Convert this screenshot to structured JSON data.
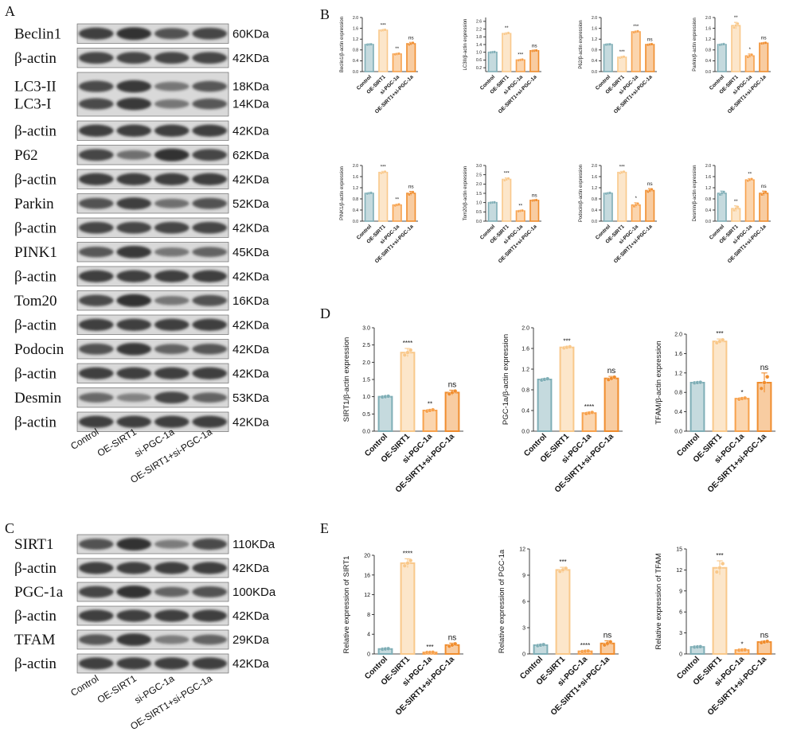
{
  "panel_labels": {
    "A": "A",
    "B": "B",
    "C": "C",
    "D": "D",
    "E": "E"
  },
  "groups": [
    "Control",
    "OE-SIRT1",
    "si-PGC-1a",
    "OE-SIRT1+si-PGC-1a"
  ],
  "colors": {
    "control": "#7FAEB6",
    "oe": "#F9C88A",
    "si": "#F7A14C",
    "combo": "#F08D2E",
    "band": "#2a2a2a"
  },
  "blot_A": [
    {
      "label": "Beclin1",
      "kda": "60KDa",
      "intensity": [
        0.9,
        1.0,
        0.75,
        0.85
      ]
    },
    {
      "label": "β-actin",
      "kda": "42KDa",
      "intensity": [
        0.85,
        0.85,
        0.85,
        0.85
      ]
    },
    {
      "label": "LC3-II",
      "kda": "18KDa",
      "label2": "LC3-I",
      "kda2": "14KDa",
      "intensity": [
        0.8,
        0.95,
        0.45,
        0.7
      ]
    },
    {
      "label": "β-actin",
      "kda": "42KDa",
      "intensity": [
        0.9,
        0.9,
        0.9,
        0.9
      ]
    },
    {
      "label": "P62",
      "kda": "62KDa",
      "intensity": [
        0.85,
        0.5,
        1.0,
        0.85
      ]
    },
    {
      "label": "β-actin",
      "kda": "42KDa",
      "intensity": [
        0.9,
        0.9,
        0.9,
        0.9
      ]
    },
    {
      "label": "Parkin",
      "kda": "52KDa",
      "intensity": [
        0.75,
        0.9,
        0.5,
        0.75
      ]
    },
    {
      "label": "β-actin",
      "kda": "42KDa",
      "intensity": [
        0.85,
        0.85,
        0.85,
        0.85
      ]
    },
    {
      "label": "PINK1",
      "kda": "45KDa",
      "intensity": [
        0.7,
        0.95,
        0.45,
        0.6
      ]
    },
    {
      "label": "β-actin",
      "kda": "42KDa",
      "intensity": [
        0.9,
        0.9,
        0.9,
        0.9
      ]
    },
    {
      "label": "Tom20",
      "kda": "16KDa",
      "intensity": [
        0.8,
        1.0,
        0.45,
        0.75
      ]
    },
    {
      "label": "β-actin",
      "kda": "42KDa",
      "intensity": [
        0.9,
        0.9,
        0.9,
        0.9
      ]
    },
    {
      "label": "Podocin",
      "kda": "42KDa",
      "intensity": [
        0.75,
        0.95,
        0.6,
        0.7
      ]
    },
    {
      "label": "β-actin",
      "kda": "42KDa",
      "intensity": [
        0.9,
        0.9,
        0.9,
        0.9
      ]
    },
    {
      "label": "Desmin",
      "kda": "53KDa",
      "intensity": [
        0.55,
        0.35,
        0.85,
        0.6
      ]
    },
    {
      "label": "β-actin",
      "kda": "42KDa",
      "intensity": [
        0.9,
        0.9,
        0.9,
        0.9
      ]
    }
  ],
  "blot_C": [
    {
      "label": "SIRT1",
      "kda": "110KDa",
      "intensity": [
        0.75,
        1.0,
        0.4,
        0.8
      ]
    },
    {
      "label": "β-actin",
      "kda": "42KDa",
      "intensity": [
        0.9,
        0.9,
        0.9,
        0.9
      ]
    },
    {
      "label": "PGC-1a",
      "kda": "100KDa",
      "intensity": [
        0.85,
        1.0,
        0.6,
        0.75
      ]
    },
    {
      "label": "β-actin",
      "kda": "42KDa",
      "intensity": [
        0.9,
        0.9,
        0.9,
        0.9
      ]
    },
    {
      "label": "TFAM",
      "kda": "29KDa",
      "intensity": [
        0.7,
        0.95,
        0.4,
        0.6
      ]
    },
    {
      "label": "β-actin",
      "kda": "42KDa",
      "intensity": [
        0.9,
        0.9,
        0.9,
        0.9
      ]
    }
  ],
  "chart_data": [
    {
      "id": "B1",
      "type": "bar",
      "categories": [
        "Control",
        "OE-SIRT1",
        "si-PGC-1a",
        "OE-SIRT1+si-PGC-1a"
      ],
      "ylabel": "Beclin1/β-actin expression",
      "ylim": [
        0,
        2.0
      ],
      "yticks": [
        "0.0",
        "0.4",
        "0.8",
        "1.2",
        "1.6",
        "2.0"
      ],
      "values": [
        1.0,
        1.53,
        0.65,
        1.03
      ],
      "errors": [
        0.01,
        0.02,
        0.02,
        0.05
      ],
      "significance": [
        "",
        "***",
        "**",
        "ns"
      ]
    },
    {
      "id": "B2",
      "type": "bar",
      "categories": [
        "Control",
        "OE-SIRT1",
        "si-PGC-1a",
        "OE-SIRT1+si-PGC-1a"
      ],
      "ylabel": "LC3II/β-actin expression",
      "ylim": [
        0,
        2.8
      ],
      "yticks": [
        "0.2",
        "0.6",
        "1.0",
        "1.4",
        "1.8",
        "2.2",
        "2.6"
      ],
      "values": [
        1.0,
        1.97,
        0.6,
        1.08
      ],
      "errors": [
        0.02,
        0.04,
        0.03,
        0.02
      ],
      "significance": [
        "",
        "**",
        "***",
        "ns"
      ]
    },
    {
      "id": "B3",
      "type": "bar",
      "categories": [
        "Control",
        "OE-SIRT1",
        "si-PGC-1a",
        "OE-SIRT1+si-PGC-1a"
      ],
      "ylabel": "P62/β-actin expression",
      "ylim": [
        0,
        2.0
      ],
      "yticks": [
        "0.0",
        "0.4",
        "0.8",
        "1.2",
        "1.6",
        "2.0"
      ],
      "values": [
        1.0,
        0.53,
        1.47,
        1.0
      ],
      "errors": [
        0.01,
        0.03,
        0.03,
        0.02
      ],
      "significance": [
        "",
        "***",
        "***",
        "ns"
      ]
    },
    {
      "id": "B4",
      "type": "bar",
      "categories": [
        "Control",
        "OE-SIRT1",
        "si-PGC-1a",
        "OE-SIRT1+si-PGC-1a"
      ],
      "ylabel": "Parkin/β-actin expression",
      "ylim": [
        0,
        2.0
      ],
      "yticks": [
        "0.0",
        "0.4",
        "0.8",
        "1.2",
        "1.6",
        "2.0"
      ],
      "values": [
        1.0,
        1.7,
        0.58,
        1.05
      ],
      "errors": [
        0.02,
        0.12,
        0.07,
        0.02
      ],
      "significance": [
        "",
        "**",
        "*",
        "ns"
      ]
    },
    {
      "id": "B5",
      "type": "bar",
      "categories": [
        "Control",
        "OE-SIRT1",
        "si-PGC-1a",
        "OE-SIRT1+si-PGC-1a"
      ],
      "ylabel": "PINK1/β-actin expression",
      "ylim": [
        0,
        2.0
      ],
      "yticks": [
        "0.0",
        "0.4",
        "0.8",
        "1.2",
        "1.6",
        "2.0"
      ],
      "values": [
        1.0,
        1.75,
        0.58,
        1.0
      ],
      "errors": [
        0.02,
        0.04,
        0.03,
        0.07
      ],
      "significance": [
        "",
        "***",
        "**",
        "ns"
      ]
    },
    {
      "id": "B6",
      "type": "bar",
      "categories": [
        "Control",
        "OE-SIRT1",
        "si-PGC-1a",
        "OE-SIRT1+si-PGC-1a"
      ],
      "ylabel": "Tom20/β-actin expression",
      "ylim": [
        0,
        3.0
      ],
      "yticks": [
        "0.0",
        "0.5",
        "1.0",
        "1.5",
        "2.0",
        "2.5",
        "3.0"
      ],
      "values": [
        1.0,
        2.25,
        0.55,
        1.12
      ],
      "errors": [
        0.02,
        0.08,
        0.03,
        0.02
      ],
      "significance": [
        "",
        "***",
        "**",
        "ns"
      ]
    },
    {
      "id": "B7",
      "type": "bar",
      "categories": [
        "Control",
        "OE-SIRT1",
        "si-PGC-1a",
        "OE-SIRT1+si-PGC-1a"
      ],
      "ylabel": "Podocin/β-actin expression",
      "ylim": [
        0,
        2.0
      ],
      "yticks": [
        "0.0",
        "0.4",
        "0.8",
        "1.2",
        "1.6",
        "2.0"
      ],
      "values": [
        1.0,
        1.75,
        0.58,
        1.1
      ],
      "errors": [
        0.02,
        0.04,
        0.08,
        0.07
      ],
      "significance": [
        "",
        "***",
        "*",
        "ns"
      ]
    },
    {
      "id": "B8",
      "type": "bar",
      "categories": [
        "Control",
        "OE-SIRT1",
        "si-PGC-1a",
        "OE-SIRT1+si-PGC-1a"
      ],
      "ylabel": "Desmin/β-actin expression",
      "ylim": [
        0,
        2.0
      ],
      "yticks": [
        "0.0",
        "0.4",
        "0.8",
        "1.2",
        "1.6",
        "2.0"
      ],
      "values": [
        1.0,
        0.45,
        1.48,
        1.0
      ],
      "errors": [
        0.08,
        0.1,
        0.05,
        0.08
      ],
      "significance": [
        "",
        "**",
        "**",
        "ns"
      ]
    },
    {
      "id": "D1",
      "type": "bar",
      "categories": [
        "Control",
        "OE-SIRT1",
        "si-PGC-1a",
        "OE-SIRT1+si-PGC-1a"
      ],
      "ylabel": "SIRT1/β-actin expression",
      "ylim": [
        0,
        3.0
      ],
      "yticks": [
        "0.0",
        "0.5",
        "1.0",
        "1.5",
        "2.0",
        "2.5",
        "3.0"
      ],
      "values": [
        1.0,
        2.28,
        0.6,
        1.12
      ],
      "errors": [
        0.02,
        0.12,
        0.03,
        0.07
      ],
      "significance": [
        "",
        "****",
        "**",
        "ns"
      ]
    },
    {
      "id": "D2",
      "type": "bar",
      "categories": [
        "Control",
        "OE-SIRT1",
        "si-PGC-1a",
        "OE-SIRT1+si-PGC-1a"
      ],
      "ylabel": "PGC-1a/β-actin expression",
      "ylim": [
        0,
        2.0
      ],
      "yticks": [
        "0.0",
        "0.4",
        "0.8",
        "1.2",
        "1.6",
        "2.0"
      ],
      "values": [
        1.0,
        1.62,
        0.35,
        1.02
      ],
      "errors": [
        0.02,
        0.02,
        0.02,
        0.04
      ],
      "significance": [
        "",
        "***",
        "****",
        "ns"
      ]
    },
    {
      "id": "D3",
      "type": "bar",
      "categories": [
        "Control",
        "OE-SIRT1",
        "si-PGC-1a",
        "OE-SIRT1+si-PGC-1a"
      ],
      "ylabel": "TFAM/β-actin expression",
      "ylim": [
        0,
        2.0
      ],
      "yticks": [
        "0.0",
        "0.4",
        "0.8",
        "1.2",
        "1.6",
        "2.0"
      ],
      "values": [
        1.0,
        1.85,
        0.67,
        1.0
      ],
      "errors": [
        0.01,
        0.05,
        0.02,
        0.2
      ],
      "significance": [
        "",
        "***",
        "*",
        "ns"
      ]
    },
    {
      "id": "E1",
      "type": "bar",
      "categories": [
        "Control",
        "OE-SIRT1",
        "si-PGC-1a",
        "OE-SIRT1+si-PGC-1a"
      ],
      "ylabel": "Relative expression of SIRT1",
      "ylim": [
        0,
        20
      ],
      "yticks": [
        "0",
        "4",
        "8",
        "12",
        "16",
        "20"
      ],
      "values": [
        1.0,
        18.4,
        0.3,
        1.8
      ],
      "errors": [
        0.1,
        0.9,
        0.05,
        0.4
      ],
      "significance": [
        "",
        "****",
        "***",
        "ns"
      ]
    },
    {
      "id": "E2",
      "type": "bar",
      "categories": [
        "Control",
        "OE-SIRT1",
        "si-PGC-1a",
        "OE-SIRT1+si-PGC-1a"
      ],
      "ylabel": "Relative expression of PGC-1a",
      "ylim": [
        0,
        12
      ],
      "yticks": [
        "0",
        "3",
        "6",
        "9",
        "12"
      ],
      "values": [
        1.0,
        9.6,
        0.3,
        1.2
      ],
      "errors": [
        0.1,
        0.3,
        0.05,
        0.3
      ],
      "significance": [
        "",
        "***",
        "****",
        "ns"
      ]
    },
    {
      "id": "E3",
      "type": "bar",
      "categories": [
        "Control",
        "OE-SIRT1",
        "si-PGC-1a",
        "OE-SIRT1+si-PGC-1a"
      ],
      "ylabel": "Relative expression of TFAM",
      "ylim": [
        0,
        15
      ],
      "yticks": [
        "0",
        "3",
        "6",
        "9",
        "12",
        "15"
      ],
      "values": [
        1.0,
        12.3,
        0.55,
        1.7
      ],
      "errors": [
        0.05,
        1.0,
        0.05,
        0.15
      ],
      "significance": [
        "",
        "***",
        "*",
        "ns"
      ]
    }
  ]
}
